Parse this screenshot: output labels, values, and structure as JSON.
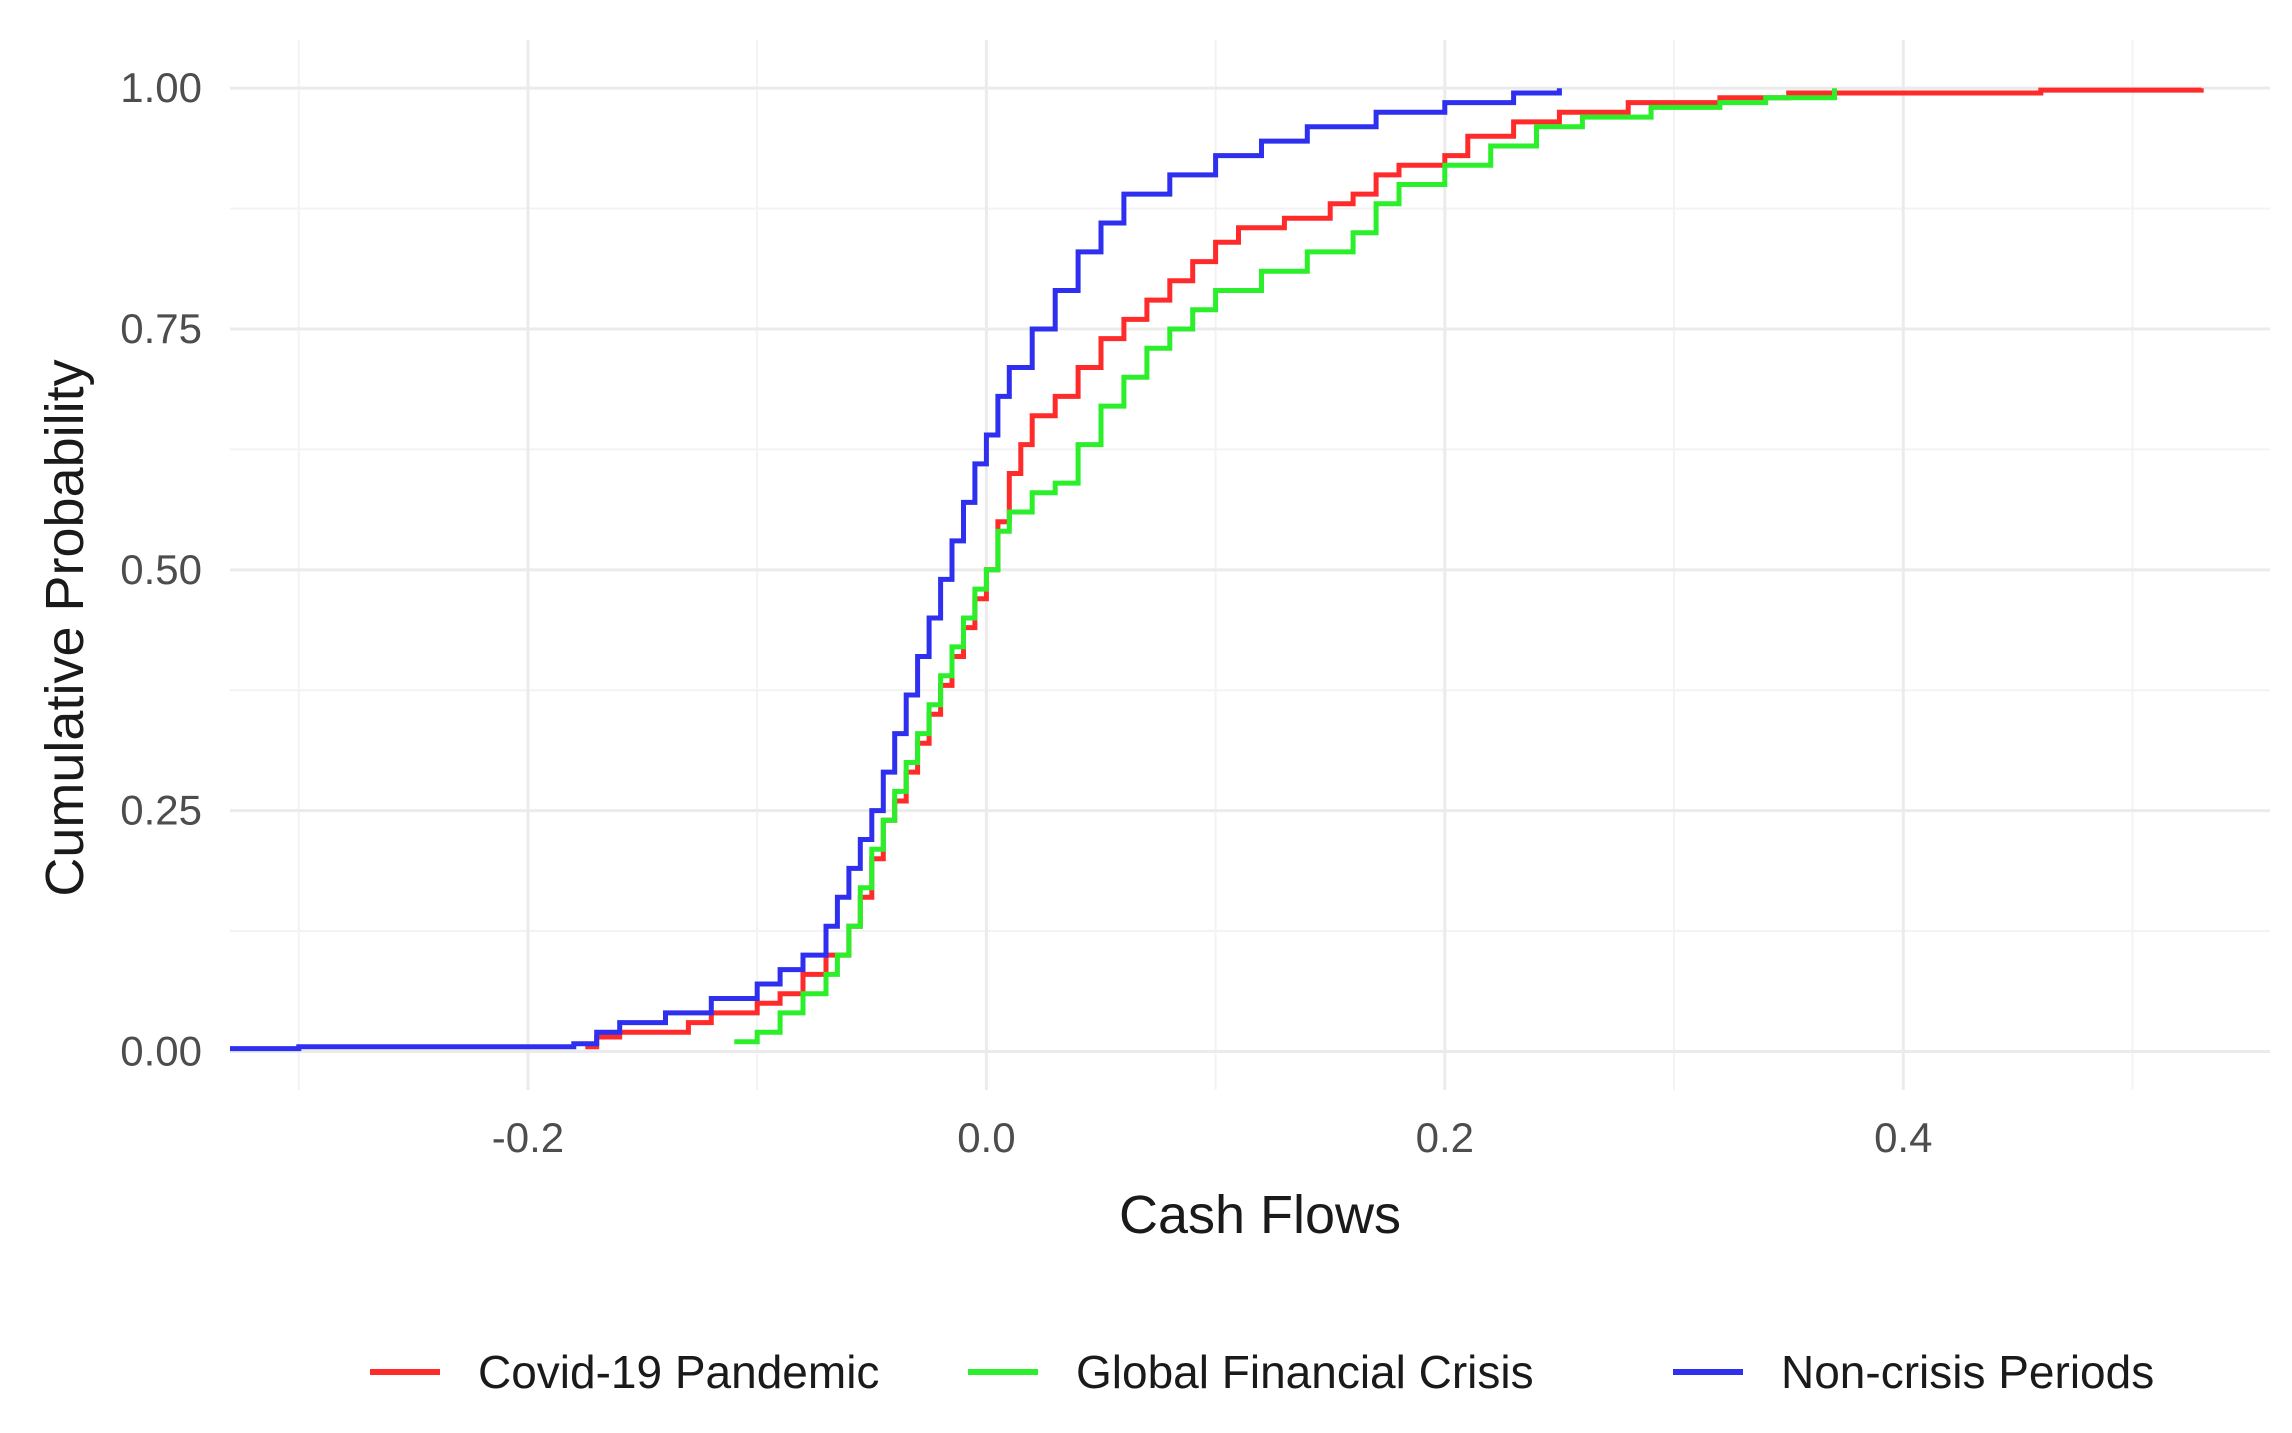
{
  "chart_data": {
    "type": "line",
    "step": true,
    "title": "",
    "xlabel": "Cash Flows",
    "ylabel": "Cumulative Probability",
    "xlim": [
      -0.33,
      0.56
    ],
    "ylim": [
      -0.04,
      1.05
    ],
    "x_ticks": [
      -0.2,
      0.0,
      0.2,
      0.4
    ],
    "x_tick_labels": [
      "-0.2",
      "0.0",
      "0.2",
      "0.4"
    ],
    "y_ticks": [
      0.0,
      0.25,
      0.5,
      0.75,
      1.0
    ],
    "y_tick_labels": [
      "0.00",
      "0.25",
      "0.50",
      "0.75",
      "1.00"
    ],
    "grid": true,
    "legend_position": "bottom",
    "series": [
      {
        "name": "Covid-19 Pandemic",
        "color": "#ff2a2a",
        "points": [
          [
            -0.175,
            0.005
          ],
          [
            -0.17,
            0.015
          ],
          [
            -0.16,
            0.02
          ],
          [
            -0.13,
            0.03
          ],
          [
            -0.12,
            0.04
          ],
          [
            -0.1,
            0.05
          ],
          [
            -0.09,
            0.06
          ],
          [
            -0.08,
            0.08
          ],
          [
            -0.07,
            0.1
          ],
          [
            -0.06,
            0.13
          ],
          [
            -0.055,
            0.16
          ],
          [
            -0.05,
            0.2
          ],
          [
            -0.045,
            0.24
          ],
          [
            -0.04,
            0.26
          ],
          [
            -0.035,
            0.29
          ],
          [
            -0.03,
            0.32
          ],
          [
            -0.025,
            0.35
          ],
          [
            -0.02,
            0.38
          ],
          [
            -0.015,
            0.41
          ],
          [
            -0.01,
            0.44
          ],
          [
            -0.005,
            0.47
          ],
          [
            0.0,
            0.5
          ],
          [
            0.005,
            0.55
          ],
          [
            0.01,
            0.6
          ],
          [
            0.015,
            0.63
          ],
          [
            0.02,
            0.66
          ],
          [
            0.03,
            0.68
          ],
          [
            0.04,
            0.71
          ],
          [
            0.05,
            0.74
          ],
          [
            0.06,
            0.76
          ],
          [
            0.07,
            0.78
          ],
          [
            0.08,
            0.8
          ],
          [
            0.09,
            0.82
          ],
          [
            0.1,
            0.84
          ],
          [
            0.11,
            0.855
          ],
          [
            0.13,
            0.865
          ],
          [
            0.15,
            0.88
          ],
          [
            0.16,
            0.89
          ],
          [
            0.17,
            0.91
          ],
          [
            0.18,
            0.92
          ],
          [
            0.2,
            0.93
          ],
          [
            0.21,
            0.95
          ],
          [
            0.23,
            0.965
          ],
          [
            0.25,
            0.975
          ],
          [
            0.28,
            0.985
          ],
          [
            0.32,
            0.99
          ],
          [
            0.35,
            0.995
          ],
          [
            0.46,
            0.998
          ],
          [
            0.53,
            1.0
          ]
        ]
      },
      {
        "name": "Global Financial Crisis",
        "color": "#2aef2a",
        "points": [
          [
            -0.11,
            0.01
          ],
          [
            -0.1,
            0.02
          ],
          [
            -0.09,
            0.04
          ],
          [
            -0.08,
            0.06
          ],
          [
            -0.07,
            0.08
          ],
          [
            -0.065,
            0.1
          ],
          [
            -0.06,
            0.13
          ],
          [
            -0.055,
            0.17
          ],
          [
            -0.05,
            0.21
          ],
          [
            -0.045,
            0.24
          ],
          [
            -0.04,
            0.27
          ],
          [
            -0.035,
            0.3
          ],
          [
            -0.03,
            0.33
          ],
          [
            -0.025,
            0.36
          ],
          [
            -0.02,
            0.39
          ],
          [
            -0.015,
            0.42
          ],
          [
            -0.01,
            0.45
          ],
          [
            -0.005,
            0.48
          ],
          [
            0.0,
            0.5
          ],
          [
            0.005,
            0.54
          ],
          [
            0.01,
            0.56
          ],
          [
            0.02,
            0.58
          ],
          [
            0.03,
            0.59
          ],
          [
            0.04,
            0.63
          ],
          [
            0.05,
            0.67
          ],
          [
            0.06,
            0.7
          ],
          [
            0.07,
            0.73
          ],
          [
            0.08,
            0.75
          ],
          [
            0.09,
            0.77
          ],
          [
            0.1,
            0.79
          ],
          [
            0.12,
            0.81
          ],
          [
            0.14,
            0.83
          ],
          [
            0.16,
            0.85
          ],
          [
            0.17,
            0.88
          ],
          [
            0.18,
            0.9
          ],
          [
            0.2,
            0.92
          ],
          [
            0.22,
            0.94
          ],
          [
            0.24,
            0.96
          ],
          [
            0.26,
            0.97
          ],
          [
            0.29,
            0.98
          ],
          [
            0.32,
            0.985
          ],
          [
            0.34,
            0.99
          ],
          [
            0.37,
            1.0
          ]
        ]
      },
      {
        "name": "Non-crisis Periods",
        "color": "#2f2fef",
        "points": [
          [
            -0.33,
            0.003
          ],
          [
            -0.3,
            0.005
          ],
          [
            -0.18,
            0.008
          ],
          [
            -0.17,
            0.02
          ],
          [
            -0.16,
            0.03
          ],
          [
            -0.14,
            0.04
          ],
          [
            -0.12,
            0.055
          ],
          [
            -0.1,
            0.07
          ],
          [
            -0.09,
            0.085
          ],
          [
            -0.08,
            0.1
          ],
          [
            -0.07,
            0.13
          ],
          [
            -0.065,
            0.16
          ],
          [
            -0.06,
            0.19
          ],
          [
            -0.055,
            0.22
          ],
          [
            -0.05,
            0.25
          ],
          [
            -0.045,
            0.29
          ],
          [
            -0.04,
            0.33
          ],
          [
            -0.035,
            0.37
          ],
          [
            -0.03,
            0.41
          ],
          [
            -0.025,
            0.45
          ],
          [
            -0.02,
            0.49
          ],
          [
            -0.015,
            0.53
          ],
          [
            -0.01,
            0.57
          ],
          [
            -0.005,
            0.61
          ],
          [
            0.0,
            0.64
          ],
          [
            0.005,
            0.68
          ],
          [
            0.01,
            0.71
          ],
          [
            0.02,
            0.75
          ],
          [
            0.03,
            0.79
          ],
          [
            0.04,
            0.83
          ],
          [
            0.05,
            0.86
          ],
          [
            0.06,
            0.89
          ],
          [
            0.08,
            0.91
          ],
          [
            0.1,
            0.93
          ],
          [
            0.12,
            0.945
          ],
          [
            0.14,
            0.96
          ],
          [
            0.17,
            0.975
          ],
          [
            0.2,
            0.985
          ],
          [
            0.23,
            0.995
          ],
          [
            0.25,
            1.0
          ]
        ]
      }
    ]
  }
}
